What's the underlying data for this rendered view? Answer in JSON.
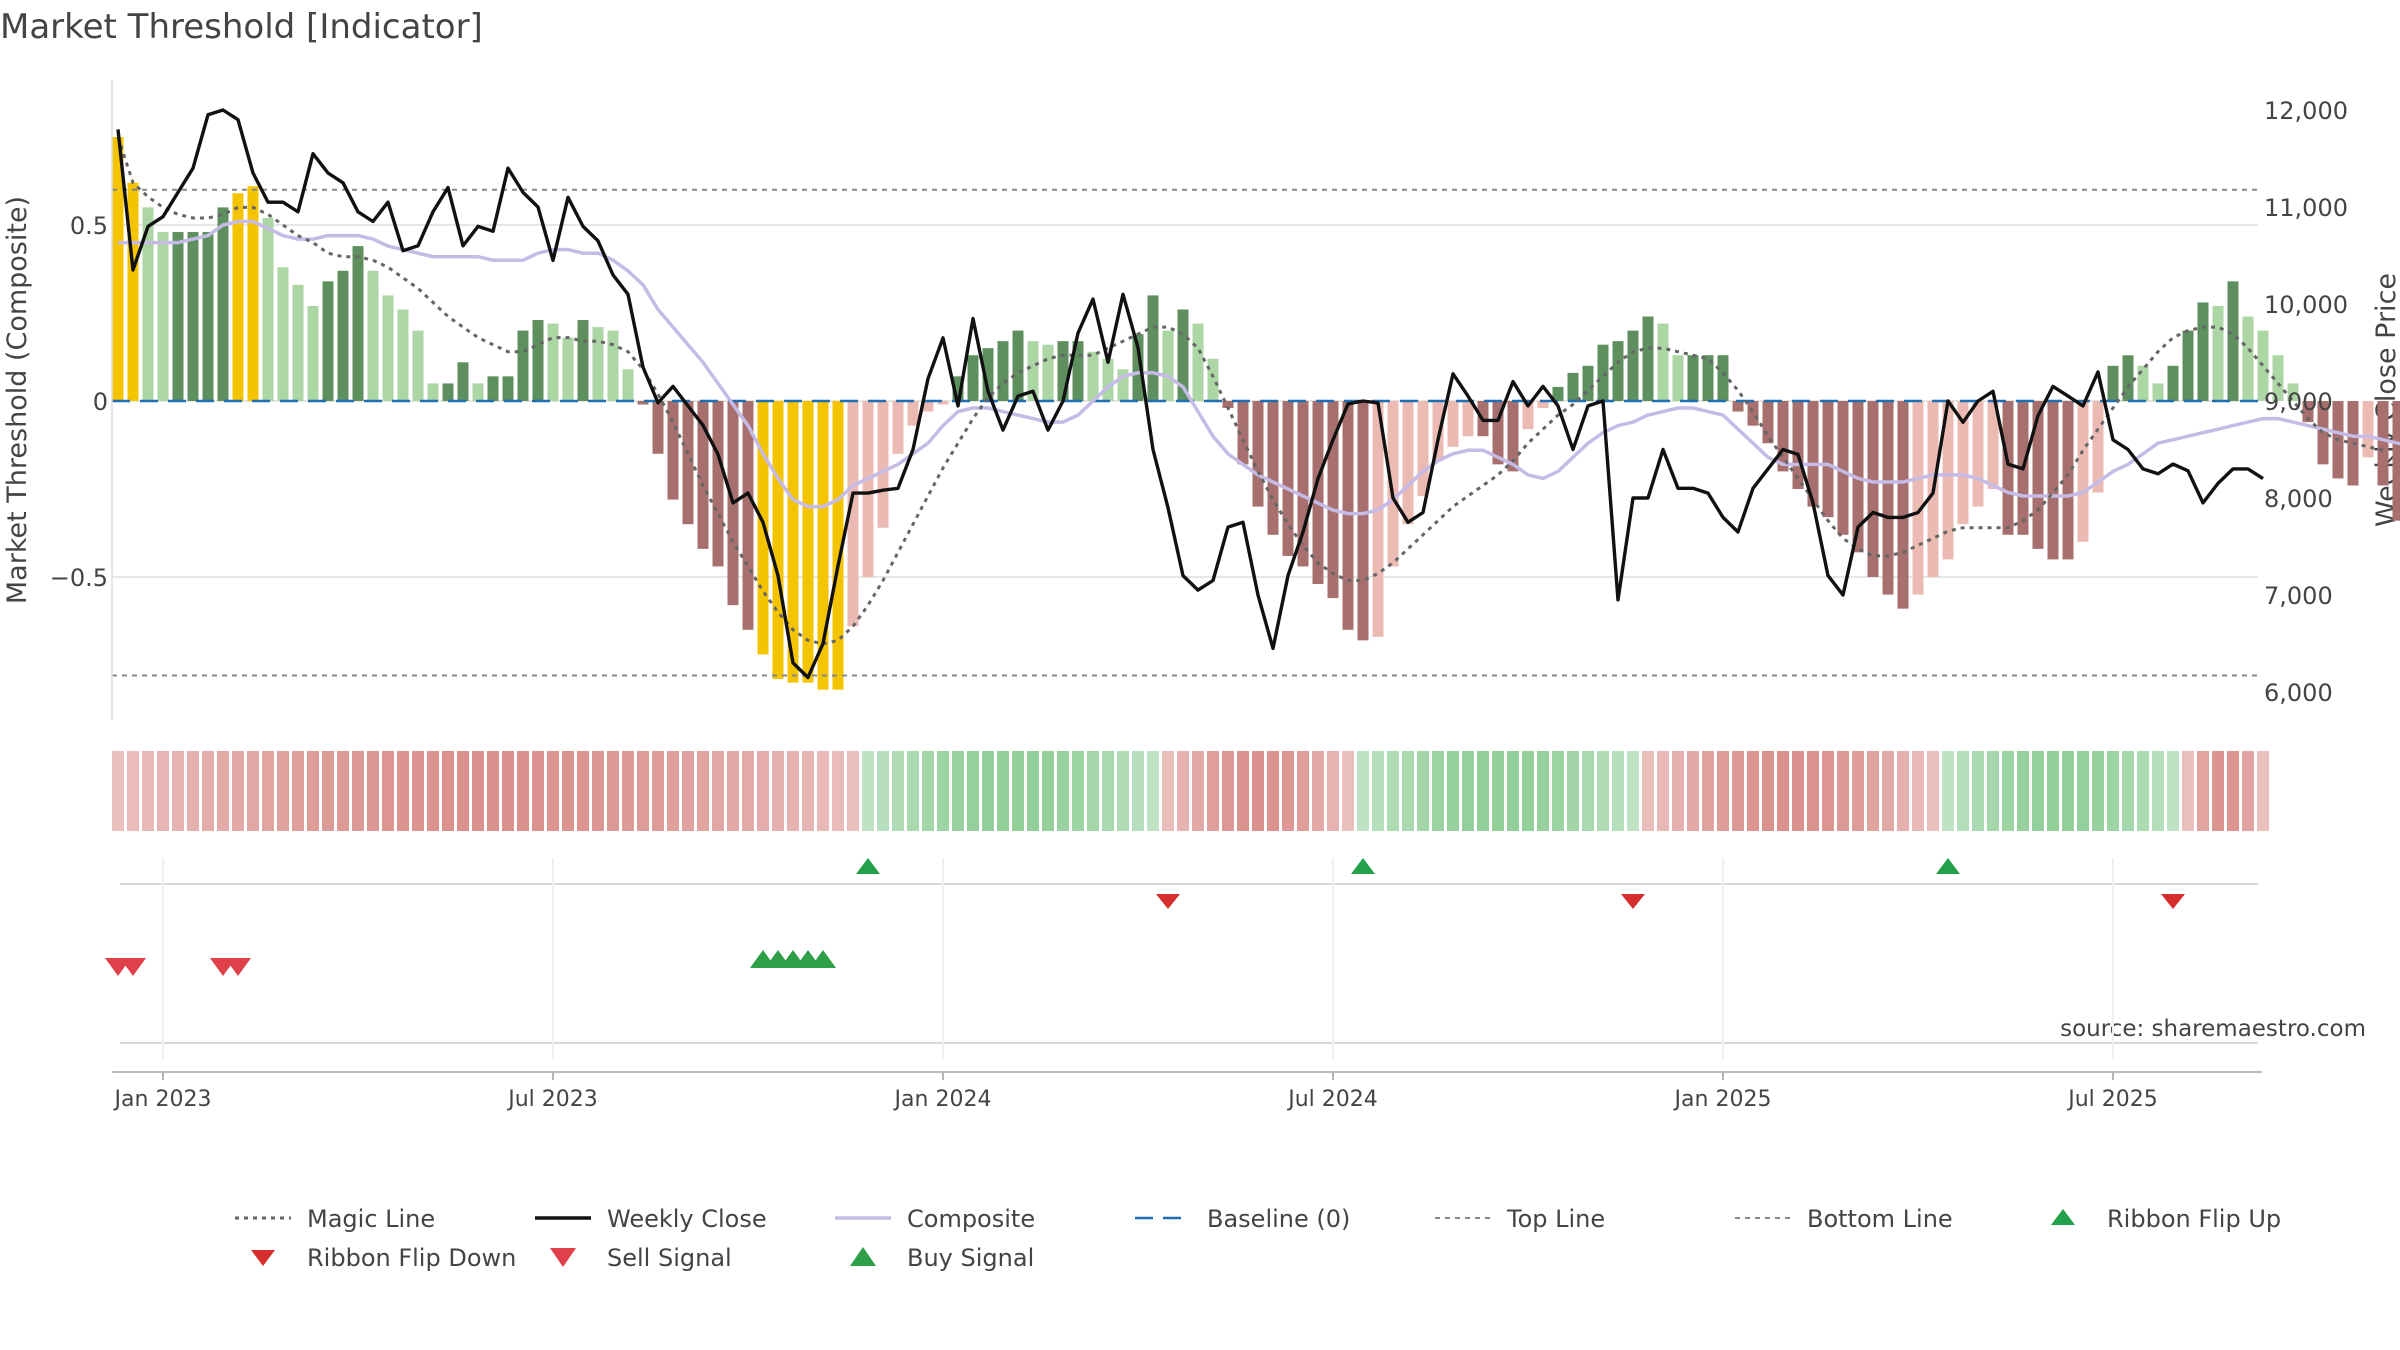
{
  "chart_data": {
    "type": "line",
    "title": "Market Threshold [Indicator]",
    "ylabel_left": "Market Threshold (Composite)",
    "ylabel_right": "Weekly Close Price",
    "ylim_left": [
      -0.9,
      0.9
    ],
    "ylim_right": [
      5700,
      12200
    ],
    "yticks_left": [
      {
        "value": 0.5,
        "label": "0.5"
      },
      {
        "value": 0,
        "label": "0"
      },
      {
        "value": -0.5,
        "label": "−0.5"
      }
    ],
    "yticks_right": [
      {
        "value": 12000,
        "label": "12,000"
      },
      {
        "value": 11000,
        "label": "11,000"
      },
      {
        "value": 10000,
        "label": "10,000"
      },
      {
        "value": 9000,
        "label": "9,000"
      },
      {
        "value": 8000,
        "label": "8,000"
      },
      {
        "value": 7000,
        "label": "7,000"
      },
      {
        "value": 6000,
        "label": "6,000"
      }
    ],
    "xticks": [
      {
        "week": 3,
        "label": "Jan 2023"
      },
      {
        "week": 29,
        "label": "Jul 2023"
      },
      {
        "week": 55,
        "label": "Jan 2024"
      },
      {
        "week": 81,
        "label": "Jul 2024"
      },
      {
        "week": 107,
        "label": "Jan 2025"
      },
      {
        "week": 133,
        "label": "Jul 2025"
      }
    ],
    "top_line": 0.6,
    "bottom_line": -0.78,
    "baseline": 0,
    "weeks": 144,
    "histogram": [
      0.75,
      0.62,
      0.55,
      0.48,
      0.48,
      0.48,
      0.48,
      0.55,
      0.59,
      0.61,
      0.52,
      0.38,
      0.33,
      0.27,
      0.34,
      0.37,
      0.44,
      0.37,
      0.3,
      0.26,
      0.2,
      0.05,
      0.05,
      0.11,
      0.05,
      0.07,
      0.07,
      0.2,
      0.23,
      0.22,
      0.18,
      0.23,
      0.21,
      0.2,
      0.09,
      -0.01,
      -0.15,
      -0.28,
      -0.35,
      -0.42,
      -0.47,
      -0.58,
      -0.65,
      -0.72,
      -0.79,
      -0.8,
      -0.8,
      -0.82,
      -0.82,
      -0.64,
      -0.5,
      -0.36,
      -0.15,
      -0.07,
      -0.03,
      -0.01,
      0.07,
      0.13,
      0.15,
      0.17,
      0.2,
      0.17,
      0.16,
      0.17,
      0.17,
      0.14,
      0.12,
      0.09,
      0.19,
      0.3,
      0.2,
      0.26,
      0.22,
      0.12,
      -0.02,
      -0.18,
      -0.3,
      -0.38,
      -0.44,
      -0.47,
      -0.52,
      -0.56,
      -0.65,
      -0.68,
      -0.67,
      -0.47,
      -0.35,
      -0.27,
      -0.17,
      -0.13,
      -0.1,
      -0.1,
      -0.18,
      -0.2,
      -0.08,
      -0.02,
      0.04,
      0.08,
      0.1,
      0.16,
      0.17,
      0.2,
      0.24,
      0.22,
      0.13,
      0.13,
      0.13,
      0.13,
      -0.03,
      -0.07,
      -0.12,
      -0.2,
      -0.25,
      -0.3,
      -0.33,
      -0.38,
      -0.43,
      -0.5,
      -0.55,
      -0.59,
      -0.55,
      -0.5,
      -0.45,
      -0.35,
      -0.3,
      -0.25,
      -0.38,
      -0.38,
      -0.42,
      -0.45,
      -0.45,
      -0.4,
      -0.26,
      0.1,
      0.13,
      0.1,
      0.05,
      0.1,
      0.2,
      0.28,
      0.27,
      0.34,
      0.24,
      0.2,
      0.13,
      0.05,
      -0.06,
      -0.18,
      -0.22,
      -0.24,
      -0.16,
      -0.24,
      -0.34
    ],
    "weekly_close": [
      11800,
      10350,
      10800,
      10900,
      11150,
      11400,
      11950,
      12000,
      11900,
      11350,
      11050,
      11050,
      10950,
      11550,
      11350,
      11250,
      10950,
      10850,
      11050,
      10550,
      10600,
      10950,
      11200,
      10600,
      10800,
      10750,
      11400,
      11150,
      11000,
      10450,
      11100,
      10800,
      10650,
      10300,
      10100,
      9350,
      8980,
      9150,
      8950,
      8750,
      8450,
      7950,
      8050,
      7750,
      7200,
      6300,
      6150,
      6500,
      7300,
      8050,
      8050,
      8080,
      8100,
      8500,
      9230,
      9650,
      8950,
      9850,
      9100,
      8700,
      9050,
      9100,
      8700,
      9000,
      9700,
      10050,
      9400,
      10100,
      9550,
      8500,
      7900,
      7200,
      7050,
      7150,
      7700,
      7750,
      7000,
      6450,
      7200,
      7650,
      8200,
      8600,
      8970,
      9000,
      8980,
      8000,
      7750,
      7850,
      8600,
      9280,
      9050,
      8800,
      8800,
      9200,
      8950,
      9150,
      8950,
      8500,
      8950,
      9000,
      6950,
      8000,
      8000,
      8500,
      8100,
      8100,
      8050,
      7800,
      7650,
      8100,
      8300,
      8500,
      8450,
      7950,
      7200,
      7000,
      7700,
      7850,
      7800,
      7800,
      7850,
      8050,
      9000,
      8780,
      9000,
      9100,
      8350,
      8300,
      8850,
      9150,
      9050,
      8950,
      9300,
      8600,
      8500,
      8300,
      8250,
      8350,
      8280,
      7950,
      8150,
      8300,
      8300,
      8200
    ],
    "composite": [
      0.45,
      0.45,
      0.45,
      0.45,
      0.45,
      0.46,
      0.47,
      0.5,
      0.51,
      0.51,
      0.49,
      0.47,
      0.46,
      0.46,
      0.47,
      0.47,
      0.47,
      0.46,
      0.44,
      0.43,
      0.42,
      0.41,
      0.41,
      0.41,
      0.41,
      0.4,
      0.4,
      0.4,
      0.42,
      0.43,
      0.43,
      0.42,
      0.42,
      0.4,
      0.37,
      0.33,
      0.26,
      0.21,
      0.16,
      0.11,
      0.05,
      -0.01,
      -0.07,
      -0.15,
      -0.22,
      -0.28,
      -0.3,
      -0.3,
      -0.28,
      -0.24,
      -0.22,
      -0.2,
      -0.18,
      -0.15,
      -0.12,
      -0.07,
      -0.03,
      -0.02,
      -0.02,
      -0.03,
      -0.04,
      -0.05,
      -0.06,
      -0.06,
      -0.04,
      0.0,
      0.04,
      0.07,
      0.08,
      0.08,
      0.07,
      0.04,
      -0.03,
      -0.1,
      -0.15,
      -0.18,
      -0.21,
      -0.23,
      -0.25,
      -0.27,
      -0.29,
      -0.31,
      -0.32,
      -0.32,
      -0.31,
      -0.28,
      -0.24,
      -0.2,
      -0.17,
      -0.15,
      -0.14,
      -0.14,
      -0.16,
      -0.18,
      -0.21,
      -0.22,
      -0.2,
      -0.16,
      -0.12,
      -0.09,
      -0.07,
      -0.06,
      -0.04,
      -0.03,
      -0.02,
      -0.02,
      -0.03,
      -0.04,
      -0.08,
      -0.12,
      -0.16,
      -0.18,
      -0.18,
      -0.18,
      -0.18,
      -0.2,
      -0.22,
      -0.23,
      -0.23,
      -0.23,
      -0.22,
      -0.21,
      -0.21,
      -0.21,
      -0.22,
      -0.24,
      -0.26,
      -0.27,
      -0.27,
      -0.27,
      -0.27,
      -0.26,
      -0.23,
      -0.2,
      -0.18,
      -0.15,
      -0.12,
      -0.11,
      -0.1,
      -0.09,
      -0.08,
      -0.07,
      -0.06,
      -0.05,
      -0.05,
      -0.06,
      -0.07,
      -0.08,
      -0.09,
      -0.1,
      -0.1,
      -0.11,
      -0.12,
      -0.13
    ],
    "magic_line": [
      0.75,
      0.62,
      0.58,
      0.55,
      0.53,
      0.52,
      0.52,
      0.53,
      0.55,
      0.55,
      0.53,
      0.5,
      0.47,
      0.45,
      0.42,
      0.41,
      0.41,
      0.4,
      0.38,
      0.35,
      0.32,
      0.28,
      0.24,
      0.21,
      0.18,
      0.16,
      0.14,
      0.14,
      0.16,
      0.18,
      0.18,
      0.17,
      0.17,
      0.16,
      0.14,
      0.09,
      0.02,
      -0.06,
      -0.15,
      -0.24,
      -0.32,
      -0.4,
      -0.47,
      -0.54,
      -0.6,
      -0.65,
      -0.68,
      -0.69,
      -0.68,
      -0.64,
      -0.58,
      -0.51,
      -0.43,
      -0.35,
      -0.27,
      -0.19,
      -0.12,
      -0.05,
      0.01,
      0.05,
      0.08,
      0.1,
      0.12,
      0.13,
      0.13,
      0.13,
      0.15,
      0.17,
      0.19,
      0.21,
      0.21,
      0.19,
      0.15,
      0.07,
      -0.02,
      -0.11,
      -0.2,
      -0.28,
      -0.35,
      -0.41,
      -0.46,
      -0.49,
      -0.51,
      -0.51,
      -0.49,
      -0.46,
      -0.42,
      -0.38,
      -0.34,
      -0.3,
      -0.27,
      -0.24,
      -0.21,
      -0.17,
      -0.12,
      -0.08,
      -0.04,
      -0.01,
      0.03,
      0.07,
      0.11,
      0.14,
      0.15,
      0.15,
      0.14,
      0.13,
      0.12,
      0.08,
      0.03,
      -0.03,
      -0.1,
      -0.16,
      -0.22,
      -0.28,
      -0.34,
      -0.39,
      -0.42,
      -0.44,
      -0.44,
      -0.43,
      -0.41,
      -0.39,
      -0.37,
      -0.36,
      -0.36,
      -0.36,
      -0.36,
      -0.34,
      -0.31,
      -0.26,
      -0.21,
      -0.14,
      -0.08,
      -0.02,
      0.04,
      0.09,
      0.14,
      0.18,
      0.2,
      0.21,
      0.21,
      0.19,
      0.15,
      0.1,
      0.05,
      0.0,
      -0.05,
      -0.09,
      -0.11,
      -0.12,
      -0.13,
      -0.14
    ],
    "ribbon": [
      {
        "from": 0,
        "to": 49,
        "trend": "down"
      },
      {
        "from": 50,
        "to": 69,
        "trend": "up"
      },
      {
        "from": 70,
        "to": 82,
        "trend": "down"
      },
      {
        "from": 83,
        "to": 101,
        "trend": "up"
      },
      {
        "from": 102,
        "to": 121,
        "trend": "down"
      },
      {
        "from": 122,
        "to": 137,
        "trend": "up"
      },
      {
        "from": 138,
        "to": 143,
        "trend": "down"
      }
    ],
    "ribbon_flip_up_weeks": [
      50,
      83,
      122
    ],
    "ribbon_flip_down_weeks": [
      70,
      101,
      137
    ],
    "sell_signal_weeks": [
      0,
      1,
      7,
      8
    ],
    "buy_signal_weeks": [
      43,
      44,
      45,
      46,
      47
    ],
    "legend": [
      {
        "key": "magic",
        "label": "Magic Line"
      },
      {
        "key": "close",
        "label": "Weekly Close"
      },
      {
        "key": "composite",
        "label": "Composite"
      },
      {
        "key": "baseline",
        "label": "Baseline (0)"
      },
      {
        "key": "top",
        "label": "Top Line"
      },
      {
        "key": "bottom",
        "label": "Bottom Line"
      },
      {
        "key": "flipup",
        "label": "Ribbon Flip Up"
      },
      {
        "key": "flipdown",
        "label": "Ribbon Flip Down"
      },
      {
        "key": "sell",
        "label": "Sell Signal"
      },
      {
        "key": "buy",
        "label": "Buy Signal"
      }
    ],
    "source": "source: sharemaestro.com",
    "colors": {
      "close": "#111111",
      "magic": "#666666",
      "composite": "#c5bbe6",
      "baseline": "#1f6fb2",
      "threshold": "#888888",
      "bar_gold": "#f5c400",
      "bar_pos_dark": "#5e8f5e",
      "bar_pos_light": "#acd6a4",
      "bar_neg_dark": "#a7706e",
      "bar_neg_light": "#ebbbb3",
      "ribbon_up": "#8ccc94",
      "ribbon_down": "#d98c88",
      "flip_up": "#22a04a",
      "flip_down": "#d62d2d",
      "sell": "#e0404a",
      "buy": "#2f9e48"
    }
  }
}
